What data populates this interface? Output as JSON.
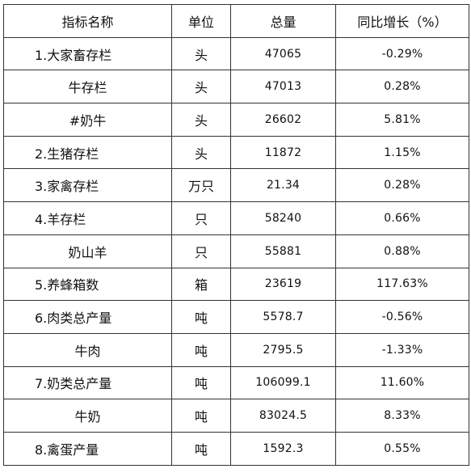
{
  "table": {
    "headers": {
      "name": "指标名称",
      "unit": "单位",
      "total": "总量",
      "yoy": "同比增长（%）"
    },
    "rows": [
      {
        "name": "1.大家畜存栏",
        "unit": "头",
        "total": "47065",
        "yoy": "-0.29%"
      },
      {
        "name": "牛存栏",
        "unit": "头",
        "total": "47013",
        "yoy": "0.28%"
      },
      {
        "name": "#奶牛",
        "unit": "头",
        "total": "26602",
        "yoy": "5.81%"
      },
      {
        "name": "2.生猪存栏",
        "unit": "头",
        "total": "11872",
        "yoy": "1.15%"
      },
      {
        "name": "3.家禽存栏",
        "unit": "万只",
        "total": "21.34",
        "yoy": "0.28%"
      },
      {
        "name": "4.羊存栏",
        "unit": "只",
        "total": "58240",
        "yoy": "0.66%"
      },
      {
        "name": "奶山羊",
        "unit": "只",
        "total": "55881",
        "yoy": "0.88%"
      },
      {
        "name": "5.养蜂箱数",
        "unit": "箱",
        "total": "23619",
        "yoy": "117.63%"
      },
      {
        "name": "6.肉类总产量",
        "unit": "吨",
        "total": "5578.7",
        "yoy": "-0.56%"
      },
      {
        "name": "牛肉",
        "unit": "吨",
        "total": "2795.5",
        "yoy": "-1.33%"
      },
      {
        "name": "7.奶类总产量",
        "unit": "吨",
        "total": "106099.1",
        "yoy": "11.60%"
      },
      {
        "name": "牛奶",
        "unit": "吨",
        "total": "83024.5",
        "yoy": "8.33%"
      },
      {
        "name": "8.禽蛋产量",
        "unit": "吨",
        "total": "1592.3",
        "yoy": "0.55%"
      }
    ]
  }
}
